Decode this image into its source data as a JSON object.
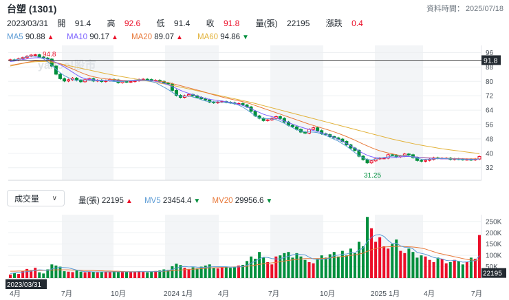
{
  "header": {
    "title": "台塑 (1301)",
    "data_time_label": "資料時間：",
    "data_time_value": "2025/07/18"
  },
  "quote": {
    "date": "2023/03/31",
    "open_label": "開",
    "open": "91.4",
    "high_label": "高",
    "high": "92.6",
    "low_label": "低",
    "low": "91.4",
    "close_label": "收",
    "close": "91.8",
    "volume_label": "量(張)",
    "volume": "22195",
    "change_label": "漲跌",
    "change": "0.4"
  },
  "ma": [
    {
      "label": "MA5",
      "value": "90.88",
      "dir": "▲",
      "color": "#5b9bd5",
      "dcolor": "#eb0f29"
    },
    {
      "label": "MA10",
      "value": "90.17",
      "dir": "▲",
      "color": "#7b61ff",
      "dcolor": "#eb0f29"
    },
    {
      "label": "MA20",
      "value": "89.07",
      "dir": "▲",
      "color": "#e8793a",
      "dcolor": "#eb0f29"
    },
    {
      "label": "MA60",
      "value": "94.86",
      "dir": "▼",
      "color": "#e2b23a",
      "dcolor": "#008f3d"
    }
  ],
  "volume_panel": {
    "dropdown": "成交量",
    "vol_label": "量(張)",
    "vol_value": "22195",
    "vol_dir": "▲",
    "mv5_label": "MV5",
    "mv5_value": "23454.4",
    "mv5_dir": "▼",
    "mv20_label": "MV20",
    "mv20_value": "29956.6",
    "mv20_dir": "▼"
  },
  "watermark": "yahoo!股市",
  "chart_data": {
    "type": "candlestick",
    "price_ticks": [
      "96",
      "88",
      "80",
      "72",
      "64",
      "56",
      "48",
      "40",
      "32"
    ],
    "price_ylim": [
      25,
      100
    ],
    "last_price_tag": "91.8",
    "max_label": "94.8",
    "min_label": "31.25",
    "volume_ticks": [
      "250K",
      "200K",
      "150K",
      "100K",
      "50K"
    ],
    "volume_ylim": [
      0,
      280000
    ],
    "last_volume_tag": "22195",
    "x_tick_labels": [
      "4月",
      "7月",
      "10月",
      "2024 1月",
      "4月",
      "7月",
      "10月",
      "2025 1月",
      "4月",
      "7月"
    ],
    "date_tag": "2023/03/31",
    "close": [
      92.0,
      91.8,
      92.6,
      93.2,
      94.0,
      94.6,
      94.8,
      93.5,
      93.0,
      92.4,
      88.5,
      84.0,
      81.5,
      80.2,
      80.9,
      81.8,
      80.6,
      79.8,
      80.9,
      81.5,
      80.2,
      80.6,
      79.9,
      80.4,
      81.1,
      80.8,
      79.3,
      79.9,
      79.7,
      79.9,
      80.4,
      81.0,
      81.2,
      81.0,
      80.4,
      80.6,
      80.0,
      79.0,
      78.6,
      75.0,
      72.2,
      71.1,
      72.0,
      72.7,
      72.0,
      71.1,
      70.4,
      69.7,
      68.5,
      68.1,
      68.5,
      68.8,
      68.4,
      68.1,
      67.6,
      67.7,
      66.9,
      65.8,
      63.4,
      60.8,
      59.5,
      58.2,
      58.6,
      59.4,
      60.4,
      59.4,
      57.4,
      55.6,
      54.7,
      53.3,
      51.8,
      51.2,
      53.3,
      54.2,
      52.6,
      50.9,
      50.4,
      49.3,
      48.6,
      47.9,
      46.6,
      44.7,
      42.9,
      41.6,
      38.4,
      36.5,
      34.7,
      35.8,
      36.9,
      37.3,
      37.3,
      39.2,
      38.9,
      38.0,
      38.5,
      39.6,
      39.2,
      37.6,
      36.0,
      35.6,
      36.1,
      36.6,
      37.5,
      37.3,
      37.3,
      37.3,
      36.6,
      36.9,
      36.7,
      36.5,
      36.6,
      36.3,
      36.8,
      38.2
    ],
    "ma5": [
      91.6,
      91.9,
      92.3,
      93.0,
      93.8,
      94.1,
      93.9,
      93.4,
      92.5,
      90.9,
      88.9,
      86.8,
      84.8,
      83.2,
      82.1,
      81.0,
      80.6,
      80.9,
      80.7,
      80.6,
      80.5,
      80.3,
      80.3,
      80.4,
      80.2,
      79.9,
      79.9,
      79.9,
      80.2,
      80.5,
      80.7,
      80.9,
      80.8,
      80.4,
      79.9,
      79.3,
      78.0,
      76.8,
      75.5,
      73.9,
      72.6,
      71.7,
      71.8,
      71.8,
      71.3,
      70.6,
      69.8,
      69.1,
      68.7,
      68.6,
      68.6,
      68.5,
      68.2,
      67.9,
      67.5,
      66.8,
      65.7,
      64.2,
      62.6,
      60.8,
      59.7,
      59.4,
      59.3,
      59.1,
      58.7,
      57.8,
      56.7,
      55.5,
      54.3,
      53.1,
      52.4,
      51.9,
      51.9,
      51.8,
      51.5,
      50.7,
      49.9,
      48.9,
      47.8,
      46.8,
      45.3,
      43.9,
      42.2,
      40.4,
      38.7,
      37.4,
      36.6,
      36.3,
      36.8,
      37.3,
      37.7,
      38.0,
      38.4,
      38.4,
      38.6,
      38.9,
      38.5,
      37.9,
      37.3,
      36.7,
      36.6,
      36.7,
      36.8,
      37.1,
      37.2,
      37.1,
      36.9,
      36.8,
      36.6,
      36.6,
      36.6,
      36.5,
      36.6,
      37.0
    ],
    "ma10": [
      91.0,
      91.3,
      91.7,
      92.1,
      92.5,
      92.9,
      93.1,
      93.1,
      93.0,
      92.3,
      91.5,
      90.5,
      89.3,
      88.0,
      86.6,
      85.1,
      83.6,
      82.3,
      81.5,
      81.1,
      80.9,
      80.7,
      80.6,
      80.5,
      80.5,
      80.4,
      80.3,
      80.2,
      80.2,
      80.3,
      80.4,
      80.6,
      80.7,
      80.6,
      80.4,
      80.1,
      79.5,
      78.9,
      78.1,
      77.1,
      76.1,
      75.0,
      74.1,
      73.3,
      72.6,
      72.0,
      71.2,
      70.5,
      70.0,
      69.7,
      69.4,
      69.1,
      68.7,
      68.3,
      67.9,
      67.3,
      66.6,
      65.8,
      64.8,
      63.7,
      62.7,
      61.7,
      61.0,
      60.4,
      59.7,
      58.8,
      57.9,
      57.1,
      56.2,
      55.4,
      54.6,
      53.9,
      53.3,
      52.7,
      52.1,
      51.4,
      50.7,
      49.8,
      48.9,
      47.8,
      46.7,
      45.5,
      44.2,
      42.8,
      41.3,
      40.0,
      38.9,
      38.1,
      37.6,
      37.4,
      37.4,
      37.4,
      37.6,
      37.8,
      38.0,
      38.2,
      38.2,
      38.1,
      37.9,
      37.6,
      37.4,
      37.3,
      37.2,
      37.0,
      36.9,
      36.9,
      36.9,
      36.9,
      36.8,
      36.8,
      36.7,
      36.7,
      36.6,
      36.8
    ],
    "ma20": [
      89.0,
      89.3,
      89.7,
      90.1,
      90.6,
      91.0,
      91.4,
      91.6,
      91.7,
      91.5,
      91.1,
      90.5,
      89.8,
      88.9,
      87.9,
      86.9,
      85.9,
      84.9,
      84.0,
      83.2,
      82.6,
      82.1,
      81.7,
      81.4,
      81.2,
      81.0,
      80.8,
      80.6,
      80.5,
      80.4,
      80.4,
      80.4,
      80.4,
      80.4,
      80.4,
      80.3,
      80.1,
      79.8,
      79.4,
      78.8,
      78.2,
      77.6,
      77.0,
      76.4,
      75.8,
      75.2,
      74.6,
      73.9,
      73.2,
      72.5,
      71.9,
      71.3,
      70.7,
      70.2,
      69.7,
      69.2,
      68.7,
      68.1,
      67.4,
      66.6,
      65.8,
      65.0,
      64.2,
      63.4,
      62.6,
      61.8,
      61.0,
      60.2,
      59.4,
      58.6,
      57.8,
      57.0,
      56.2,
      55.5,
      54.8,
      54.1,
      53.4,
      52.7,
      51.9,
      51.1,
      50.2,
      49.3,
      48.3,
      47.3,
      46.2,
      45.1,
      44.1,
      43.1,
      42.2,
      41.4,
      40.8,
      40.2,
      39.7,
      39.2,
      38.8,
      38.5,
      38.3,
      38.1,
      37.9,
      37.7,
      37.6,
      37.5,
      37.4,
      37.3,
      37.2,
      37.2,
      37.1,
      37.1,
      37.0,
      37.0,
      36.9,
      36.9,
      36.9,
      36.9
    ],
    "ma60": [
      88.5,
      89.0,
      89.5,
      90.0,
      90.4,
      90.7,
      90.9,
      91.0,
      91.0,
      90.9,
      90.6,
      90.2,
      89.8,
      89.3,
      88.8,
      88.3,
      87.8,
      87.3,
      86.8,
      86.3,
      85.8,
      85.3,
      84.8,
      84.3,
      83.9,
      83.4,
      83.0,
      82.6,
      82.2,
      81.8,
      81.4,
      81.0,
      80.6,
      80.2,
      79.8,
      79.4,
      79.0,
      78.6,
      78.2,
      77.8,
      77.3,
      76.8,
      76.3,
      75.8,
      75.3,
      74.8,
      74.3,
      73.8,
      73.3,
      72.8,
      72.3,
      71.8,
      71.3,
      70.8,
      70.3,
      69.8,
      69.3,
      68.8,
      68.3,
      67.7,
      67.1,
      66.5,
      65.9,
      65.3,
      64.7,
      64.1,
      63.5,
      62.9,
      62.3,
      61.7,
      61.1,
      60.5,
      59.9,
      59.3,
      58.7,
      58.1,
      57.5,
      56.9,
      56.3,
      55.7,
      55.1,
      54.5,
      53.9,
      53.3,
      52.7,
      52.1,
      51.5,
      50.9,
      50.3,
      49.7,
      49.1,
      48.5,
      47.9,
      47.4,
      46.9,
      46.4,
      45.9,
      45.4,
      44.9,
      44.5,
      44.1,
      43.7,
      43.3,
      42.9,
      42.5,
      42.2,
      41.9,
      41.6,
      41.3,
      41.0,
      40.7,
      40.4,
      40.1,
      39.8
    ],
    "volume": [
      15000,
      22000,
      18000,
      30000,
      40000,
      35000,
      45000,
      25000,
      20000,
      38000,
      60000,
      55000,
      50000,
      30000,
      28000,
      26000,
      33000,
      28000,
      25000,
      29000,
      26000,
      25000,
      28000,
      27000,
      26000,
      30000,
      26000,
      28000,
      26000,
      27000,
      28000,
      30000,
      27000,
      25000,
      29000,
      31000,
      33000,
      38000,
      36000,
      52000,
      63000,
      57000,
      45000,
      40000,
      47000,
      42000,
      50000,
      55000,
      60000,
      45000,
      42000,
      48000,
      50000,
      45000,
      48000,
      55000,
      58000,
      75000,
      95000,
      85000,
      115000,
      90000,
      70000,
      60000,
      95000,
      100000,
      110000,
      115000,
      90000,
      110000,
      95000,
      80000,
      70000,
      65000,
      85000,
      100000,
      90000,
      105000,
      115000,
      95000,
      120000,
      100000,
      130000,
      110000,
      160000,
      140000,
      270000,
      220000,
      160000,
      180000,
      140000,
      130000,
      150000,
      170000,
      120000,
      110000,
      130000,
      115000,
      90000,
      100000,
      95000,
      80000,
      70000,
      90000,
      85000,
      65000,
      70000,
      80000,
      75000,
      60000,
      70000,
      90000,
      85000,
      190000
    ],
    "mv5": [
      20000,
      22000,
      24000,
      26000,
      28000,
      30000,
      34000,
      36000,
      35000,
      33000,
      40000,
      44000,
      47000,
      46000,
      45000,
      40000,
      35000,
      31000,
      28000,
      28000,
      27000,
      27000,
      27000,
      27000,
      27000,
      27000,
      27000,
      27000,
      27000,
      27000,
      27000,
      28000,
      28000,
      28000,
      28000,
      28000,
      29000,
      31000,
      33000,
      38000,
      44000,
      49000,
      51000,
      49000,
      50000,
      48000,
      47000,
      47000,
      49000,
      50000,
      50000,
      50000,
      50000,
      48000,
      48000,
      49000,
      51000,
      56000,
      66000,
      74000,
      85000,
      92000,
      91000,
      86000,
      84000,
      85000,
      91000,
      96000,
      102000,
      106000,
      104000,
      102000,
      92000,
      84000,
      82000,
      82000,
      84000,
      88000,
      99000,
      101000,
      105000,
      106000,
      112000,
      111000,
      124000,
      132000,
      162000,
      180000,
      190000,
      192000,
      184000,
      166000,
      152000,
      154000,
      142000,
      136000,
      136000,
      129000,
      113000,
      109000,
      105000,
      98000,
      91000,
      87000,
      84000,
      78000,
      76000,
      78000,
      74000,
      70000,
      71000,
      75000,
      76000,
      99000
    ],
    "mv20": [
      30000,
      30000,
      31000,
      31000,
      32000,
      32000,
      33000,
      33000,
      34000,
      34000,
      35000,
      36000,
      36000,
      36000,
      36000,
      35000,
      35000,
      34000,
      33000,
      33000,
      33000,
      32000,
      32000,
      31000,
      31000,
      30000,
      30000,
      29000,
      28000,
      28000,
      28000,
      28000,
      28000,
      28000,
      28000,
      29000,
      29000,
      30000,
      31000,
      32000,
      34000,
      35000,
      37000,
      38000,
      39000,
      40000,
      41000,
      43000,
      44000,
      45000,
      46000,
      47000,
      48000,
      48000,
      49000,
      49000,
      50000,
      52000,
      54000,
      57000,
      60000,
      63000,
      65000,
      67000,
      69000,
      72000,
      75000,
      78000,
      80000,
      82000,
      84000,
      86000,
      86000,
      86000,
      86000,
      86000,
      87000,
      89000,
      91000,
      93000,
      95000,
      97000,
      100000,
      102000,
      106000,
      110000,
      118000,
      125000,
      130000,
      134000,
      137000,
      138000,
      139000,
      140000,
      140000,
      139000,
      138000,
      137000,
      135000,
      132000,
      128000,
      122000,
      116000,
      110000,
      106000,
      102000,
      98000,
      94000,
      90000,
      86000,
      82000,
      80000,
      78000,
      80000
    ]
  }
}
